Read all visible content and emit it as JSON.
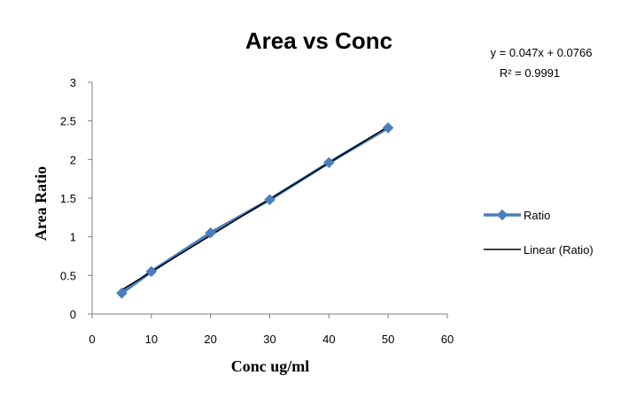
{
  "chart_data": {
    "type": "scatter",
    "title": "Area vs Conc",
    "xlabel": "Conc ug/ml",
    "ylabel": "Area Ratio",
    "xlim": [
      0,
      60
    ],
    "ylim": [
      0,
      3
    ],
    "x_ticks": [
      "0",
      "10",
      "20",
      "30",
      "40",
      "50",
      "60"
    ],
    "y_ticks": [
      "0",
      "0.5",
      "1",
      "1.5",
      "2",
      "2.5",
      "3"
    ],
    "grid": false,
    "legend_position": "right",
    "series": [
      {
        "name": "Ratio",
        "color": "#4a7ebb",
        "marker": "diamond",
        "x": [
          5,
          10,
          20,
          30,
          40,
          50
        ],
        "y": [
          0.27,
          0.55,
          1.05,
          1.48,
          1.96,
          2.41
        ]
      }
    ],
    "trendline": {
      "name": "Linear (Ratio)",
      "color": "#000000",
      "slope": 0.047,
      "intercept": 0.0766,
      "x_range": [
        5,
        50
      ],
      "equation": "y = 0.047x + 0.0766",
      "r_squared": "R² = 0.9991"
    }
  }
}
